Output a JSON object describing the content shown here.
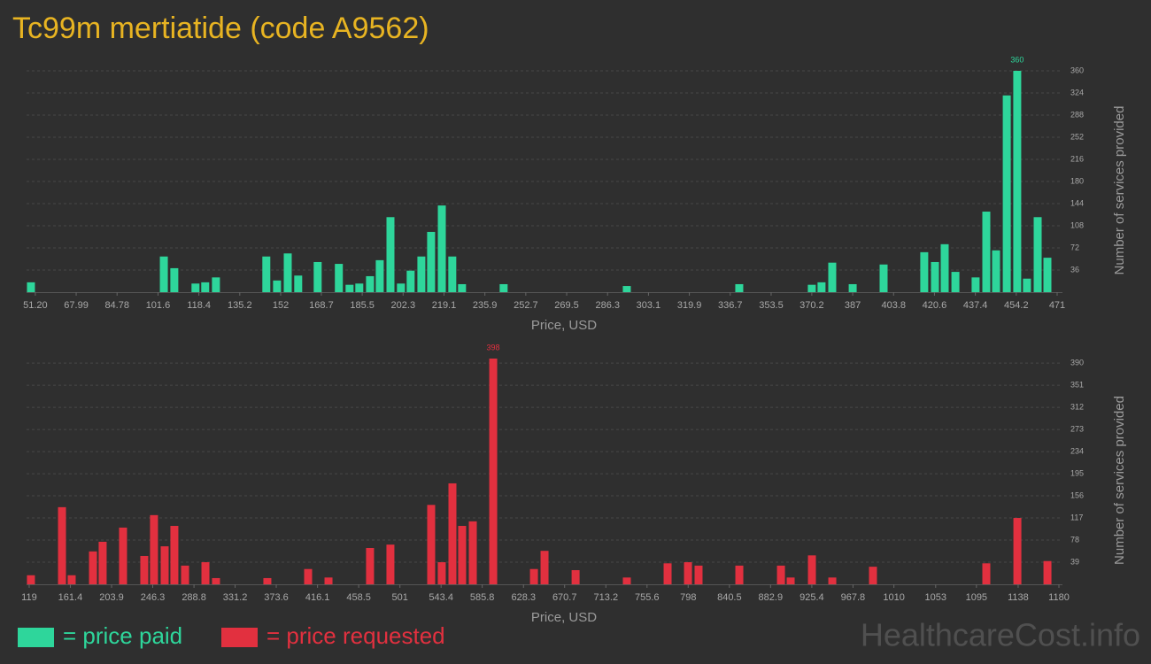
{
  "header": {
    "title": "Tc99m mertiatide (code A9562)"
  },
  "watermark": "HealthcareCost.info",
  "chart_data": [
    {
      "type": "bar",
      "xlabel": "Price, USD",
      "ylabel": "Number of services provided",
      "grid": true,
      "xlim": [
        47.6,
        471
      ],
      "ylim": [
        0,
        360
      ],
      "xticks": [
        {
          "value": 51.2,
          "label": "51.20"
        },
        67.99,
        84.78,
        101.6,
        118.4,
        135.2,
        152,
        168.7,
        185.5,
        202.3,
        219.1,
        235.9,
        252.7,
        269.5,
        286.3,
        303.1,
        319.9,
        336.7,
        353.5,
        370.2,
        387,
        403.8,
        420.6,
        437.4,
        454.2,
        471
      ],
      "yticks": [
        36,
        72,
        108,
        144,
        180,
        216,
        252,
        288,
        324,
        360
      ],
      "x": [
        49.4,
        104.0,
        108.3,
        117.0,
        121.0,
        125.4,
        146.1,
        150.5,
        154.9,
        159.2,
        167.2,
        175.9,
        180.3,
        184.3,
        188.7,
        192.7,
        197.1,
        201.4,
        205.4,
        209.8,
        213.8,
        218.2,
        222.5,
        226.5,
        243.6,
        294.2,
        340.4,
        370.2,
        374.2,
        378.6,
        387.0,
        399.7,
        416.4,
        420.8,
        424.8,
        429.2,
        437.5,
        441.9,
        445.9,
        450.3,
        454.6,
        458.6,
        463.0,
        467.0
      ],
      "series": [
        {
          "name": "= price paid",
          "color": "#2ed69b",
          "values": [
            16,
            58,
            39,
            14,
            16,
            24,
            58,
            19,
            63,
            27,
            49,
            46,
            12,
            14,
            26,
            52,
            122,
            14,
            35,
            58,
            98,
            141,
            58,
            13,
            13,
            10,
            13,
            12,
            16,
            48,
            13,
            45,
            65,
            49,
            78,
            33,
            24,
            131,
            68,
            320,
            360,
            22,
            122,
            56
          ]
        }
      ]
    },
    {
      "type": "bar",
      "xlabel": "Price, USD",
      "ylabel": "Number of services provided",
      "grid": true,
      "xlim": [
        116.3,
        1180
      ],
      "ylim": [
        0,
        398
      ],
      "xticks": [
        119,
        161.4,
        203.9,
        246.3,
        288.8,
        331.2,
        373.6,
        416.1,
        458.5,
        501,
        543.4,
        585.8,
        628.3,
        670.7,
        713.2,
        755.6,
        798,
        840.5,
        882.9,
        925.4,
        967.8,
        1010,
        1053,
        1095,
        1138,
        1180
      ],
      "yticks": [
        39,
        78,
        117,
        156,
        195,
        234,
        273,
        312,
        351,
        390
      ],
      "x": [
        120.8,
        152.8,
        162.8,
        184.7,
        194.7,
        215.7,
        237.6,
        247.6,
        258.6,
        268.6,
        279.6,
        300.6,
        311.5,
        364.4,
        406.4,
        427.4,
        470.2,
        491.2,
        533.2,
        544.1,
        555.1,
        565.1,
        576.1,
        597.1,
        639.1,
        650.0,
        682.0,
        734.8,
        776.8,
        797.8,
        808.7,
        850.7,
        893.6,
        903.6,
        925.5,
        946.5,
        988.4,
        1105.2,
        1137.2,
        1168.2
      ],
      "series": [
        {
          "name": "= price requested",
          "color": "#e2303f",
          "values": [
            16,
            136,
            16,
            58,
            75,
            100,
            50,
            122,
            67,
            103,
            33,
            39,
            11,
            11,
            27,
            12,
            64,
            70,
            140,
            39,
            178,
            103,
            111,
            398,
            27,
            59,
            25,
            12,
            37,
            39,
            33,
            33,
            33,
            12,
            51,
            12,
            31,
            37,
            117,
            41
          ]
        }
      ]
    }
  ]
}
